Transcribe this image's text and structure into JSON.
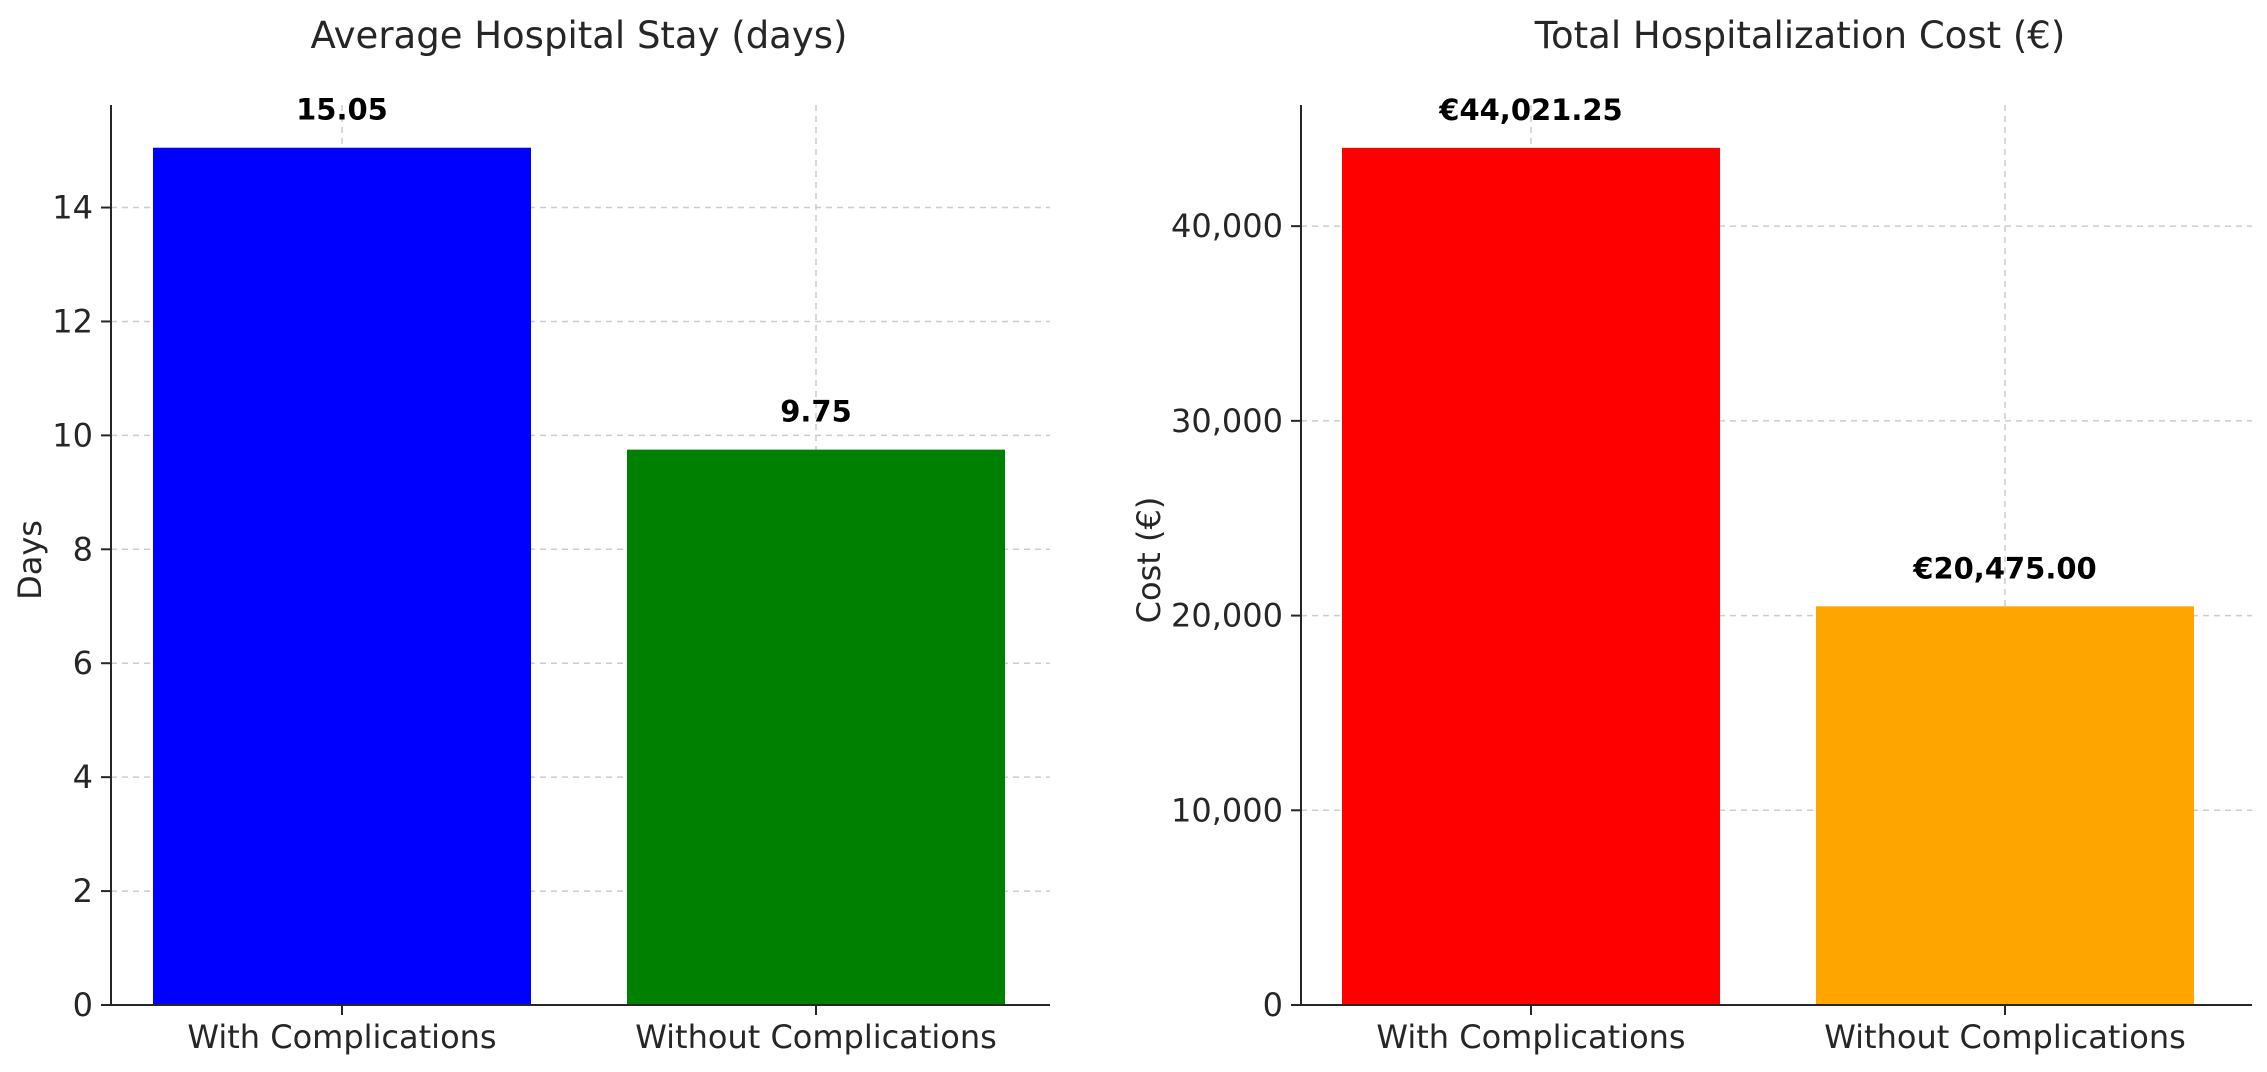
{
  "chart_data": [
    {
      "type": "bar",
      "title": "Average Hospital Stay (days)",
      "xlabel": "",
      "ylabel": "Days",
      "categories": [
        "With Complications",
        "Without Complications"
      ],
      "values": [
        15.05,
        9.75
      ],
      "value_labels": [
        "15.05",
        "9.75"
      ],
      "colors": [
        "#0000ff",
        "#008000"
      ],
      "ylim": [
        0,
        15.8
      ],
      "yticks": [
        0,
        2,
        4,
        6,
        8,
        10,
        12,
        14
      ],
      "ytick_labels": [
        "0",
        "2",
        "4",
        "6",
        "8",
        "10",
        "12",
        "14"
      ],
      "grid": true
    },
    {
      "type": "bar",
      "title": "Total Hospitalization Cost (€)",
      "xlabel": "",
      "ylabel": "Cost (€)",
      "categories": [
        "With Complications",
        "Without Complications"
      ],
      "values": [
        44021.25,
        20475.0
      ],
      "value_labels": [
        "€44,021.25",
        "€20,475.00"
      ],
      "colors": [
        "#ff0000",
        "#ffa500"
      ],
      "ylim": [
        0,
        46222
      ],
      "yticks": [
        0,
        10000,
        20000,
        30000,
        40000
      ],
      "ytick_labels": [
        "0",
        "10,000",
        "20,000",
        "30,000",
        "40,000"
      ],
      "grid": true
    }
  ]
}
